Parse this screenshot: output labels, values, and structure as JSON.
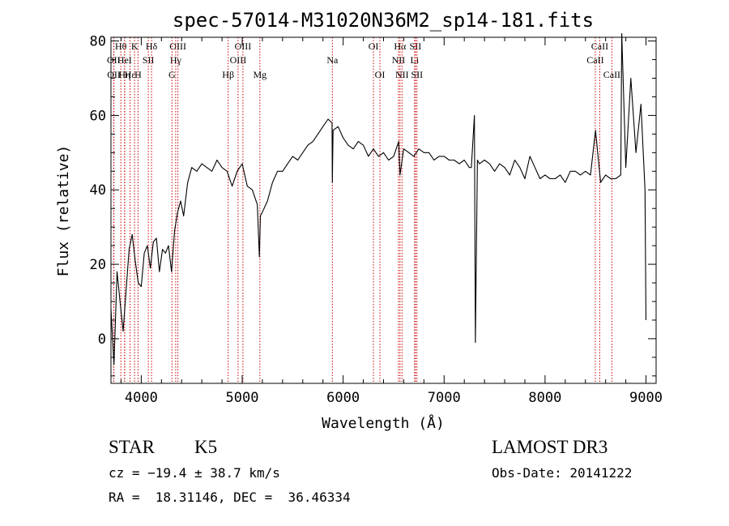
{
  "chart_data": {
    "type": "line",
    "title": "spec-57014-M31020N36M2_sp14-181.fits",
    "xlabel": "Wavelength (Å)",
    "ylabel": "Flux (relative)",
    "xlim": [
      3700,
      9100
    ],
    "ylim": [
      -12,
      81
    ],
    "xticks": [
      4000,
      5000,
      6000,
      7000,
      8000,
      9000
    ],
    "yticks": [
      0,
      20,
      40,
      60,
      80
    ],
    "colors": {
      "spectrum": "#000000",
      "lines": "#cc0000"
    },
    "series": [
      {
        "x": [
          3700,
          3730,
          3760,
          3790,
          3820,
          3850,
          3880,
          3910,
          3940,
          3970,
          4000,
          4030,
          4060,
          4090,
          4120,
          4150,
          4180,
          4210,
          4240,
          4270,
          4300,
          4330,
          4360,
          4390,
          4420,
          4460,
          4500,
          4550,
          4600,
          4650,
          4700,
          4750,
          4800,
          4850,
          4900,
          4950,
          5000,
          5050,
          5100,
          5150,
          5170,
          5180,
          5200,
          5250,
          5300,
          5350,
          5400,
          5450,
          5500,
          5550,
          5600,
          5650,
          5700,
          5750,
          5800,
          5850,
          5890,
          5893,
          5900,
          5950,
          6000,
          6050,
          6100,
          6150,
          6200,
          6250,
          6300,
          6350,
          6400,
          6450,
          6500,
          6550,
          6563,
          6600,
          6650,
          6700,
          6750,
          6800,
          6850,
          6900,
          6950,
          7000,
          7050,
          7100,
          7150,
          7200,
          7250,
          7270,
          7300,
          7310,
          7330,
          7350,
          7400,
          7450,
          7500,
          7550,
          7600,
          7650,
          7700,
          7750,
          7800,
          7850,
          7900,
          7950,
          8000,
          8050,
          8100,
          8150,
          8200,
          8250,
          8300,
          8350,
          8400,
          8450,
          8500,
          8550,
          8600,
          8650,
          8700,
          8750,
          8760,
          8800,
          8850,
          8900,
          8950,
          8990,
          9000
        ],
        "y": [
          8,
          -7,
          18,
          10,
          2,
          13,
          24,
          28,
          21,
          15,
          14,
          23,
          25,
          19,
          26,
          27,
          18,
          24,
          23,
          25,
          18,
          29,
          34,
          37,
          33,
          42,
          46,
          45,
          47,
          46,
          45,
          48,
          46,
          45,
          41,
          45,
          47,
          41,
          40,
          36,
          22,
          33,
          34,
          37,
          42,
          45,
          45,
          47,
          49,
          48,
          50,
          52,
          53,
          55,
          57,
          59,
          58,
          42,
          56,
          57,
          54,
          52,
          51,
          53,
          52,
          49,
          51,
          49,
          50,
          48,
          49,
          53,
          44,
          51,
          50,
          49,
          51,
          50,
          50,
          48,
          49,
          49,
          48,
          48,
          47,
          48,
          46,
          46,
          60,
          -1,
          48,
          47,
          48,
          47,
          45,
          47,
          46,
          44,
          48,
          46,
          43,
          49,
          46,
          43,
          44,
          43,
          43,
          44,
          42,
          45,
          45,
          44,
          45,
          44,
          56,
          42,
          44,
          43,
          43,
          44,
          82,
          46,
          70,
          50,
          63,
          40,
          5
        ]
      }
    ],
    "line_markers": [
      {
        "label": "Hθ",
        "wave": 3798,
        "row": 0
      },
      {
        "label": "OII",
        "wave": 3727,
        "row": 1
      },
      {
        "label": "OII",
        "wave": 3729,
        "row": 2
      },
      {
        "label": "Hε",
        "wave": 3889,
        "row": 2
      },
      {
        "label": "HeI",
        "wave": 3835,
        "row": 1
      },
      {
        "label": "Hη",
        "wave": 3835,
        "row": 2
      },
      {
        "label": "K",
        "wave": 3934,
        "row": 0
      },
      {
        "label": "SII",
        "wave": 4070,
        "row": 1
      },
      {
        "label": "H",
        "wave": 3968,
        "row": 2
      },
      {
        "label": "Hδ",
        "wave": 4102,
        "row": 0
      },
      {
        "label": "OIII",
        "wave": 4363,
        "row": 0
      },
      {
        "label": "Hγ",
        "wave": 4341,
        "row": 1
      },
      {
        "label": "G",
        "wave": 4304,
        "row": 2
      },
      {
        "label": "OIII",
        "wave": 5007,
        "row": 0
      },
      {
        "label": "OIII",
        "wave": 4959,
        "row": 1
      },
      {
        "label": "Hβ",
        "wave": 4861,
        "row": 2
      },
      {
        "label": "Mg",
        "wave": 5175,
        "row": 2
      },
      {
        "label": "Na",
        "wave": 5893,
        "row": 1
      },
      {
        "label": "OI",
        "wave": 6300,
        "row": 0
      },
      {
        "label": "OI",
        "wave": 6364,
        "row": 2
      },
      {
        "label": "Hα",
        "wave": 6563,
        "row": 0
      },
      {
        "label": "SII",
        "wave": 6716,
        "row": 0
      },
      {
        "label": "NII",
        "wave": 6548,
        "row": 1
      },
      {
        "label": "Li",
        "wave": 6708,
        "row": 1
      },
      {
        "label": "NII",
        "wave": 6583,
        "row": 2
      },
      {
        "label": "SII",
        "wave": 6731,
        "row": 2
      },
      {
        "label": "CaII",
        "wave": 8542,
        "row": 0
      },
      {
        "label": "CaII",
        "wave": 8498,
        "row": 1
      },
      {
        "label": "CaII",
        "wave": 8662,
        "row": 2
      }
    ]
  },
  "info": {
    "class_label": "STAR",
    "subclass_label": "K5",
    "survey_label": "LAMOST DR3",
    "cz_text": "cz = −19.4 ± 38.7 km/s",
    "obs_date_text": "Obs-Date: 20141222",
    "coords_text": "RA =  18.31146, DEC =  36.46334"
  }
}
